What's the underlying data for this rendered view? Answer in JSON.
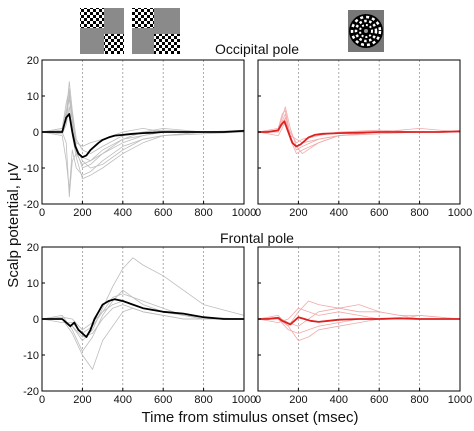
{
  "labels": {
    "occipital_title": "Occipital pole",
    "frontal_title": "Frontal pole",
    "ylabel": "Scalp potential, μV",
    "xlabel": "Time from stimulus onset (msec)"
  },
  "colors": {
    "left_mean": "#000000",
    "left_trials": "#bdbdbd",
    "right_mean": "#dd2020",
    "right_trials": "#f2aaaa",
    "vline": "#999999"
  },
  "icons": [
    "alternating-checkerboard-icon",
    "radial-checkerboard-icon"
  ],
  "chart_data": [
    {
      "type": "line",
      "panel": "occipital-left",
      "title": "Occipital pole",
      "xlim": [
        0,
        1000
      ],
      "ylim": [
        -20,
        20
      ],
      "xticks": [
        0,
        200,
        400,
        600,
        800,
        1000
      ],
      "yticks": [
        -20,
        -10,
        0,
        10,
        20
      ],
      "vlines": [
        200,
        400,
        600,
        800
      ],
      "series": [
        {
          "role": "mean",
          "x": [
            0,
            50,
            100,
            120,
            135,
            150,
            165,
            180,
            200,
            220,
            240,
            260,
            280,
            300,
            330,
            360,
            400,
            450,
            500,
            550,
            600,
            700,
            800,
            900,
            1000
          ],
          "y": [
            0,
            0,
            0,
            4,
            5,
            0,
            -4,
            -6,
            -7,
            -6.5,
            -5,
            -4,
            -3,
            -2.2,
            -1.5,
            -1,
            -0.8,
            -0.5,
            -0.3,
            -0.2,
            0,
            0,
            0,
            0,
            0.3
          ]
        },
        {
          "role": "trial",
          "x": [
            0,
            100,
            120,
            135,
            150,
            170,
            200,
            240,
            300,
            400,
            500,
            600,
            800,
            1000
          ],
          "y": [
            0,
            1,
            8,
            12,
            2,
            -6,
            -9,
            -8,
            -5,
            -2,
            -1,
            0,
            0,
            0.5
          ]
        },
        {
          "role": "trial",
          "x": [
            0,
            100,
            120,
            135,
            150,
            170,
            200,
            240,
            300,
            400,
            500,
            600,
            800,
            1000
          ],
          "y": [
            0,
            -1,
            -8,
            -16,
            -5,
            -10,
            -12,
            -11,
            -8,
            -4,
            -2,
            -1,
            0,
            0
          ]
        },
        {
          "role": "trial",
          "x": [
            0,
            100,
            120,
            135,
            150,
            170,
            200,
            240,
            300,
            400,
            500,
            600,
            800,
            1000
          ],
          "y": [
            0,
            0,
            5,
            14,
            6,
            -2,
            -5,
            -6,
            -4,
            -1,
            0,
            0.5,
            0,
            0
          ]
        },
        {
          "role": "trial",
          "x": [
            0,
            100,
            120,
            135,
            150,
            170,
            200,
            240,
            300,
            400,
            500,
            600,
            800,
            1000
          ],
          "y": [
            0,
            0.5,
            3,
            10,
            4,
            -4,
            -8,
            -10,
            -9,
            -5,
            -2,
            -1,
            -0.5,
            0
          ]
        },
        {
          "role": "trial",
          "x": [
            0,
            100,
            120,
            135,
            150,
            170,
            200,
            240,
            300,
            400,
            500,
            600,
            800,
            1000
          ],
          "y": [
            0,
            -0.5,
            2,
            7,
            -1,
            -7,
            -13,
            -12,
            -10,
            -6,
            -3,
            -1,
            0,
            0
          ]
        },
        {
          "role": "trial",
          "x": [
            0,
            100,
            120,
            135,
            150,
            170,
            200,
            240,
            300,
            400,
            500,
            600,
            800,
            1000
          ],
          "y": [
            0,
            1,
            6,
            9,
            3,
            -3,
            -4,
            -3,
            -2,
            0,
            1,
            0,
            0,
            0
          ]
        },
        {
          "role": "trial",
          "x": [
            0,
            100,
            120,
            135,
            150,
            170,
            200,
            240,
            300,
            400,
            500,
            600,
            800,
            1000
          ],
          "y": [
            0,
            0,
            -3,
            -18,
            -8,
            -6,
            -7,
            -8,
            -6,
            -3,
            -1,
            0,
            0,
            0
          ]
        },
        {
          "role": "trial",
          "x": [
            0,
            100,
            120,
            135,
            150,
            170,
            200,
            240,
            300,
            400,
            500,
            600,
            800,
            1000
          ],
          "y": [
            0,
            0,
            4,
            11,
            5,
            -5,
            -10,
            -9,
            -6,
            -2,
            0,
            1,
            0,
            0
          ]
        }
      ]
    },
    {
      "type": "line",
      "panel": "occipital-right",
      "xlim": [
        0,
        1000
      ],
      "ylim": [
        -20,
        20
      ],
      "xticks": [
        0,
        200,
        400,
        600,
        800,
        1000
      ],
      "yticks": [
        -20,
        -10,
        0,
        10,
        20
      ],
      "vlines": [
        200,
        400,
        600,
        800
      ],
      "series": [
        {
          "role": "mean",
          "x": [
            0,
            50,
            100,
            115,
            130,
            150,
            170,
            190,
            210,
            230,
            250,
            280,
            320,
            400,
            500,
            600,
            700,
            800,
            900,
            1000
          ],
          "y": [
            0,
            0,
            0.5,
            2,
            3,
            0,
            -3,
            -4,
            -3.5,
            -2.5,
            -1.5,
            -0.8,
            -0.5,
            -0.3,
            -0.2,
            0,
            0,
            0,
            0,
            0.2
          ]
        },
        {
          "role": "trial",
          "x": [
            0,
            100,
            120,
            135,
            160,
            190,
            220,
            300,
            400,
            600,
            800,
            1000
          ],
          "y": [
            0,
            1,
            5,
            6,
            -1,
            -5,
            -4,
            -2,
            -1,
            0,
            0,
            0
          ]
        },
        {
          "role": "trial",
          "x": [
            0,
            100,
            120,
            135,
            160,
            190,
            220,
            300,
            400,
            600,
            800,
            1000
          ],
          "y": [
            0,
            0,
            2,
            4,
            -2,
            -6,
            -5,
            -3,
            -1,
            -0.5,
            0,
            0
          ]
        },
        {
          "role": "trial",
          "x": [
            0,
            100,
            120,
            135,
            160,
            190,
            220,
            300,
            400,
            600,
            800,
            1000
          ],
          "y": [
            0,
            -1,
            1,
            3,
            0,
            -3,
            -2,
            -1,
            0,
            0.5,
            0,
            0
          ]
        },
        {
          "role": "trial",
          "x": [
            0,
            100,
            120,
            135,
            160,
            190,
            220,
            300,
            400,
            600,
            800,
            1000
          ],
          "y": [
            0,
            0.5,
            4,
            7,
            1,
            -4,
            -6,
            -3,
            -1,
            0,
            0,
            0
          ]
        },
        {
          "role": "trial",
          "x": [
            0,
            100,
            120,
            135,
            160,
            190,
            220,
            300,
            400,
            600,
            800,
            1000
          ],
          "y": [
            0,
            0,
            3,
            5,
            -1,
            -2,
            -3,
            -2,
            -1,
            0,
            1,
            0
          ]
        }
      ]
    },
    {
      "type": "line",
      "panel": "frontal-left",
      "title": "Frontal pole",
      "xlim": [
        0,
        1000
      ],
      "ylim": [
        -20,
        20
      ],
      "xticks": [
        0,
        200,
        400,
        600,
        800,
        1000
      ],
      "yticks": [
        -20,
        -10,
        0,
        10,
        20
      ],
      "vlines": [
        200,
        400,
        600,
        800
      ],
      "series": [
        {
          "role": "mean",
          "x": [
            0,
            50,
            100,
            120,
            140,
            160,
            180,
            200,
            220,
            240,
            260,
            280,
            300,
            330,
            360,
            400,
            450,
            500,
            550,
            600,
            700,
            800,
            900,
            1000
          ],
          "y": [
            0,
            0,
            0,
            -1,
            -2,
            -1,
            -3,
            -4,
            -5,
            -3,
            0,
            2,
            4,
            5,
            5.5,
            5,
            4,
            3,
            2.5,
            2,
            1.5,
            0.5,
            0,
            0
          ]
        },
        {
          "role": "trial",
          "x": [
            0,
            100,
            150,
            200,
            250,
            300,
            350,
            400,
            450,
            500,
            600,
            700,
            800,
            1000
          ],
          "y": [
            0,
            0,
            -2,
            -6,
            -3,
            3,
            9,
            14,
            17,
            15,
            12,
            8,
            4,
            1
          ]
        },
        {
          "role": "trial",
          "x": [
            0,
            100,
            150,
            200,
            250,
            300,
            350,
            400,
            450,
            500,
            600,
            700,
            800,
            1000
          ],
          "y": [
            0,
            1,
            -3,
            -9,
            -5,
            1,
            5,
            8,
            6,
            5,
            3,
            1,
            0,
            0
          ]
        },
        {
          "role": "trial",
          "x": [
            0,
            100,
            150,
            200,
            250,
            300,
            350,
            400,
            450,
            500,
            600,
            700,
            800,
            1000
          ],
          "y": [
            0,
            -1,
            -1,
            -4,
            -2,
            2,
            6,
            7,
            6,
            4,
            2,
            1,
            0,
            0
          ]
        },
        {
          "role": "trial",
          "x": [
            0,
            100,
            150,
            200,
            250,
            300,
            350,
            400,
            450,
            500,
            600,
            700,
            800,
            1000
          ],
          "y": [
            0,
            0,
            -4,
            -10,
            -14,
            -6,
            -2,
            2,
            3,
            2,
            1,
            0,
            0,
            0
          ]
        },
        {
          "role": "trial",
          "x": [
            0,
            100,
            150,
            200,
            250,
            300,
            350,
            400,
            450,
            500,
            600,
            700,
            800,
            1000
          ],
          "y": [
            0,
            0.5,
            0,
            -3,
            -1,
            2,
            4,
            5,
            4,
            3,
            2,
            1,
            0.5,
            0
          ]
        },
        {
          "role": "trial",
          "x": [
            0,
            100,
            150,
            200,
            250,
            300,
            350,
            400,
            450,
            500,
            600,
            700,
            800,
            1000
          ],
          "y": [
            0,
            0,
            -2,
            -5,
            -4,
            0,
            3,
            4,
            3,
            2,
            1,
            0,
            0,
            0
          ]
        }
      ]
    },
    {
      "type": "line",
      "panel": "frontal-right",
      "xlim": [
        0,
        1000
      ],
      "ylim": [
        -20,
        20
      ],
      "xticks": [
        0,
        200,
        400,
        600,
        800,
        1000
      ],
      "yticks": [
        -20,
        -10,
        0,
        10,
        20
      ],
      "vlines": [
        200,
        400,
        600,
        800
      ],
      "series": [
        {
          "role": "mean",
          "x": [
            0,
            50,
            100,
            120,
            140,
            160,
            180,
            200,
            230,
            260,
            300,
            350,
            400,
            500,
            600,
            700,
            800,
            900,
            1000
          ],
          "y": [
            0,
            0,
            0.3,
            -0.5,
            -1,
            -1.5,
            -0.5,
            0.5,
            0,
            -0.5,
            -0.8,
            -0.5,
            -0.2,
            0,
            0,
            0.2,
            0,
            0,
            0
          ]
        },
        {
          "role": "trial",
          "x": [
            0,
            100,
            150,
            200,
            250,
            300,
            400,
            500,
            600,
            700,
            800,
            1000
          ],
          "y": [
            0,
            1,
            -2,
            2,
            5,
            4,
            3,
            2,
            2,
            1,
            1,
            0
          ]
        },
        {
          "role": "trial",
          "x": [
            0,
            100,
            150,
            200,
            250,
            300,
            400,
            500,
            600,
            700,
            800,
            1000
          ],
          "y": [
            0,
            0,
            -3,
            -4,
            -3,
            -2,
            -1,
            0,
            0,
            0,
            0,
            0
          ]
        },
        {
          "role": "trial",
          "x": [
            0,
            100,
            150,
            200,
            250,
            300,
            400,
            500,
            600,
            700,
            800,
            1000
          ],
          "y": [
            0,
            -1,
            0,
            3,
            2,
            1,
            2,
            1,
            0,
            0,
            1,
            0
          ]
        },
        {
          "role": "trial",
          "x": [
            0,
            100,
            150,
            200,
            250,
            300,
            400,
            500,
            600,
            700,
            800,
            1000
          ],
          "y": [
            0,
            0.5,
            -1,
            -2,
            0,
            2,
            3,
            4,
            2,
            1,
            0,
            0
          ]
        },
        {
          "role": "trial",
          "x": [
            0,
            100,
            150,
            200,
            250,
            300,
            400,
            500,
            600,
            700,
            800,
            1000
          ],
          "y": [
            0,
            0,
            -2,
            -6,
            -5,
            -3,
            -2,
            -1,
            0,
            0,
            0,
            0
          ]
        }
      ]
    }
  ]
}
